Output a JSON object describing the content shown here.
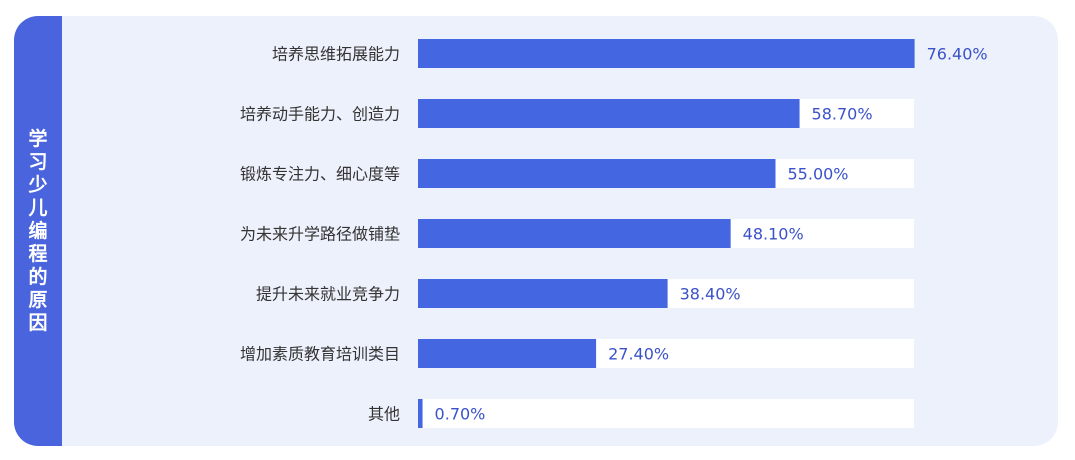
{
  "side_title": "学习少儿编程的原因",
  "colors": {
    "bar": "#4566e1",
    "track": "#ffffff",
    "panel": "#edf1fc",
    "side": "#4a64dd"
  },
  "chart_data": {
    "type": "bar",
    "orientation": "horizontal",
    "categories": [
      "培养思维拓展能力",
      "培养动手能力、创造力",
      "锻炼专注力、细心度等",
      "为未来升学路径做铺垫",
      "提升未来就业竞争力",
      "增加素质教育培训类目",
      "其他"
    ],
    "values": [
      76.4,
      58.7,
      55.0,
      48.1,
      38.4,
      27.4,
      0.7
    ],
    "value_labels": [
      "76.40%",
      "58.70%",
      "55.00%",
      "48.10%",
      "38.40%",
      "27.40%",
      "0.70%"
    ],
    "xlim": [
      0,
      100
    ],
    "unit": "%",
    "grid": false,
    "legend": "none"
  }
}
